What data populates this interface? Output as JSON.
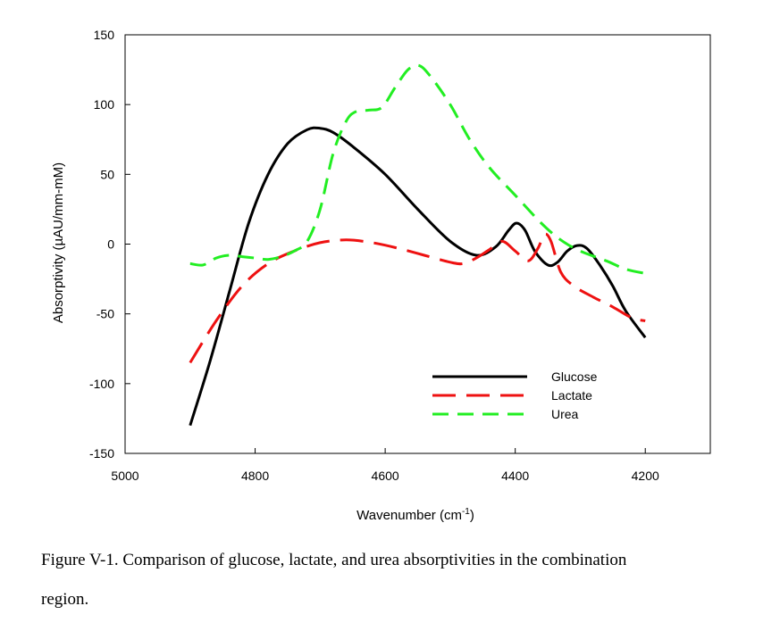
{
  "chart_data": {
    "type": "line",
    "xlabel": "Wavenumber (cm",
    "xlabel_sup": "-1",
    "xlabel_end": ")",
    "ylabel": "Absorptivity (µAU/mm-mM)",
    "xlim": [
      5000,
      4100
    ],
    "ylim": [
      -150,
      150
    ],
    "x_ticks": [
      5000,
      4800,
      4600,
      4400,
      4200
    ],
    "y_ticks": [
      150,
      100,
      50,
      0,
      -50,
      -100,
      -150
    ],
    "grid": false,
    "legend_position": "bottom-right",
    "series": [
      {
        "name": "Glucose",
        "color": "#000000",
        "dash": "solid",
        "points": [
          [
            4900,
            -130
          ],
          [
            4870,
            -85
          ],
          [
            4840,
            -35
          ],
          [
            4810,
            15
          ],
          [
            4780,
            50
          ],
          [
            4750,
            72
          ],
          [
            4720,
            82
          ],
          [
            4700,
            83
          ],
          [
            4680,
            80
          ],
          [
            4650,
            70
          ],
          [
            4600,
            50
          ],
          [
            4550,
            25
          ],
          [
            4500,
            2
          ],
          [
            4460,
            -8
          ],
          [
            4430,
            -2
          ],
          [
            4410,
            10
          ],
          [
            4398,
            15
          ],
          [
            4385,
            10
          ],
          [
            4370,
            -5
          ],
          [
            4350,
            -15
          ],
          [
            4335,
            -13
          ],
          [
            4320,
            -5
          ],
          [
            4305,
            -1
          ],
          [
            4290,
            -3
          ],
          [
            4270,
            -15
          ],
          [
            4250,
            -30
          ],
          [
            4230,
            -48
          ],
          [
            4200,
            -67
          ]
        ]
      },
      {
        "name": "Lactate",
        "color": "#ee1111",
        "dash": "long",
        "points": [
          [
            4900,
            -85
          ],
          [
            4860,
            -55
          ],
          [
            4820,
            -30
          ],
          [
            4780,
            -14
          ],
          [
            4740,
            -5
          ],
          [
            4700,
            1
          ],
          [
            4660,
            3
          ],
          [
            4620,
            1
          ],
          [
            4580,
            -3
          ],
          [
            4540,
            -8
          ],
          [
            4500,
            -13
          ],
          [
            4480,
            -14
          ],
          [
            4460,
            -10
          ],
          [
            4440,
            -4
          ],
          [
            4420,
            2
          ],
          [
            4400,
            -5
          ],
          [
            4380,
            -12
          ],
          [
            4365,
            -3
          ],
          [
            4355,
            7
          ],
          [
            4345,
            2
          ],
          [
            4330,
            -20
          ],
          [
            4310,
            -30
          ],
          [
            4280,
            -38
          ],
          [
            4250,
            -45
          ],
          [
            4220,
            -53
          ],
          [
            4200,
            -55
          ]
        ]
      },
      {
        "name": "Urea",
        "color": "#22ee22",
        "dash": "medium",
        "points": [
          [
            4900,
            -14
          ],
          [
            4880,
            -15
          ],
          [
            4860,
            -10
          ],
          [
            4840,
            -8
          ],
          [
            4820,
            -9
          ],
          [
            4800,
            -10
          ],
          [
            4780,
            -11
          ],
          [
            4760,
            -9
          ],
          [
            4740,
            -5
          ],
          [
            4720,
            2
          ],
          [
            4700,
            25
          ],
          [
            4680,
            65
          ],
          [
            4660,
            88
          ],
          [
            4645,
            95
          ],
          [
            4625,
            96
          ],
          [
            4605,
            98
          ],
          [
            4585,
            112
          ],
          [
            4565,
            125
          ],
          [
            4548,
            128
          ],
          [
            4530,
            120
          ],
          [
            4500,
            100
          ],
          [
            4470,
            75
          ],
          [
            4440,
            55
          ],
          [
            4400,
            35
          ],
          [
            4360,
            15
          ],
          [
            4330,
            3
          ],
          [
            4300,
            -5
          ],
          [
            4260,
            -12
          ],
          [
            4230,
            -18
          ],
          [
            4200,
            -21
          ]
        ]
      }
    ]
  },
  "caption": {
    "line1": "Figure V-1. Comparison of glucose, lactate, and urea absorptivities in the combination",
    "line2": "region."
  }
}
